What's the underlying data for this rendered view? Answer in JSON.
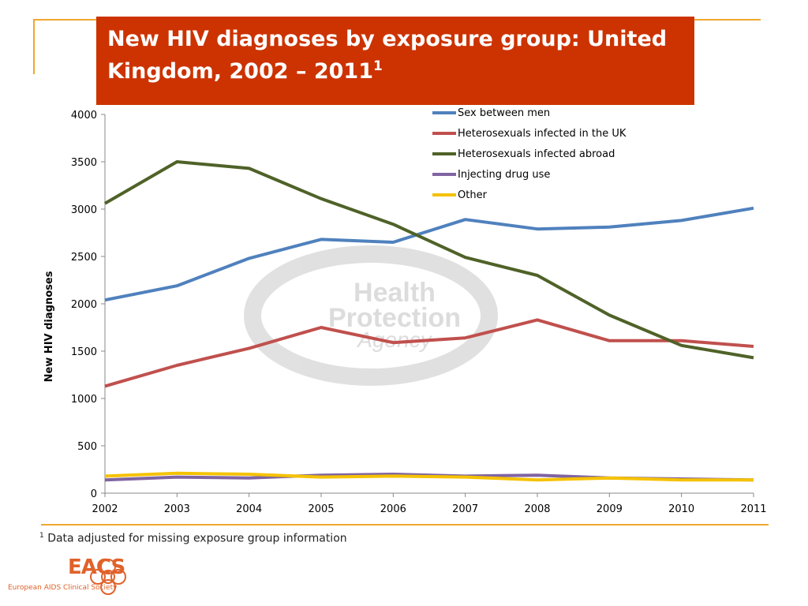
{
  "slide": {
    "title": "New HIV diagnoses by exposure group: United Kingdom, 2002 – 2011",
    "title_superscript": "1",
    "footnote_marker": "1",
    "footnote": "Data adjusted for missing exposure group information",
    "logo_text": "EACS",
    "logo_subtitle": "European AIDS Clinical Society",
    "watermark": "Health Protection Agency"
  },
  "chart_data": {
    "type": "line",
    "title": "",
    "xlabel": "",
    "ylabel": "New HIV diagnoses",
    "x": [
      "2002",
      "2003",
      "2004",
      "2005",
      "2006",
      "2007",
      "2008",
      "2009",
      "2010",
      "2011"
    ],
    "ylim": [
      0,
      4000
    ],
    "yticks": [
      0,
      500,
      1000,
      1500,
      2000,
      2500,
      3000,
      3500,
      4000
    ],
    "grid": false,
    "legend_position": "top-right",
    "series": [
      {
        "name": "Sex between men",
        "color": "#4f81bd",
        "values": [
          2040,
          2190,
          2480,
          2680,
          2650,
          2890,
          2790,
          2810,
          2880,
          3010
        ]
      },
      {
        "name": "Heterosexuals infected in the UK",
        "color": "#c0504d",
        "values": [
          1130,
          1350,
          1530,
          1750,
          1590,
          1640,
          1830,
          1610,
          1610,
          1550
        ]
      },
      {
        "name": "Heterosexuals infected abroad",
        "color": "#4f6228",
        "values": [
          3060,
          3500,
          3430,
          3110,
          2840,
          2490,
          2300,
          1880,
          1560,
          1430
        ]
      },
      {
        "name": "Injecting drug use",
        "color": "#8064a2",
        "values": [
          140,
          170,
          160,
          190,
          200,
          180,
          190,
          160,
          150,
          140
        ]
      },
      {
        "name": "Other",
        "color": "#f5c200",
        "values": [
          180,
          210,
          200,
          170,
          180,
          170,
          140,
          160,
          140,
          140
        ]
      }
    ]
  }
}
